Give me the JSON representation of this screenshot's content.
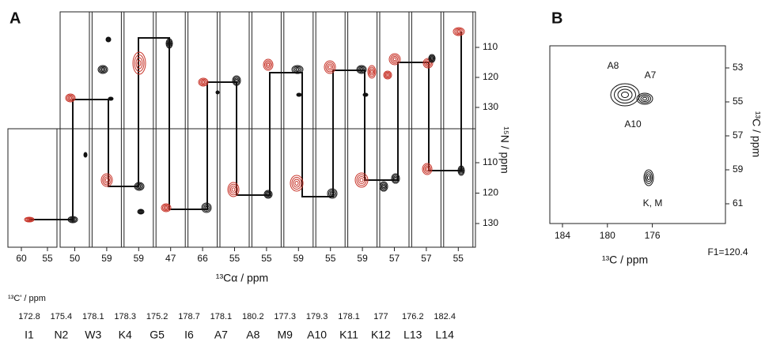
{
  "panel_a": {
    "label": "A",
    "nitrogen_axis_label": "¹⁵N / ppm",
    "ca_axis_label": "¹³Cα / ppm",
    "carbonyl_label": "¹³C' / ppm",
    "nitrogen_ticks_upper": [
      110,
      120,
      130
    ],
    "nitrogen_ticks_lower": [
      110,
      120,
      130
    ],
    "strips": [
      {
        "residue": "I1",
        "ca_ticks": [
          60,
          55
        ],
        "carbonyl": 172.8
      },
      {
        "residue": "N2",
        "ca_ticks": [
          50
        ],
        "carbonyl": 175.4
      },
      {
        "residue": "W3",
        "ca_ticks": [
          59
        ],
        "carbonyl": 178.1
      },
      {
        "residue": "K4",
        "ca_ticks": [
          59
        ],
        "carbonyl": 178.3
      },
      {
        "residue": "G5",
        "ca_ticks": [
          47
        ],
        "carbonyl": 175.2
      },
      {
        "residue": "I6",
        "ca_ticks": [
          66
        ],
        "carbonyl": 178.7
      },
      {
        "residue": "A7",
        "ca_ticks": [
          55
        ],
        "carbonyl": 178.1
      },
      {
        "residue": "A8",
        "ca_ticks": [
          55
        ],
        "carbonyl": 180.2
      },
      {
        "residue": "M9",
        "ca_ticks": [
          59
        ],
        "carbonyl": 177.3
      },
      {
        "residue": "A10",
        "ca_ticks": [
          55
        ],
        "carbonyl": 179.3
      },
      {
        "residue": "K11",
        "ca_ticks": [
          59
        ],
        "carbonyl": 178.1
      },
      {
        "residue": "K12",
        "ca_ticks": [
          57
        ],
        "carbonyl": 177.0
      },
      {
        "residue": "L13",
        "ca_ticks": [
          57
        ],
        "carbonyl": 176.2
      },
      {
        "residue": "L14",
        "ca_ticks": [
          55
        ],
        "carbonyl": 182.4
      }
    ]
  },
  "panel_b": {
    "label": "B",
    "x_axis_label": "¹³C / ppm",
    "y_axis_label": "¹³C / ppm",
    "xticks": [
      184,
      180,
      176
    ],
    "yticks": [
      53,
      55,
      57,
      59,
      61
    ],
    "peak_labels": [
      "A8",
      "A7",
      "A10",
      "K, M"
    ],
    "note": "F1=120.4"
  }
}
